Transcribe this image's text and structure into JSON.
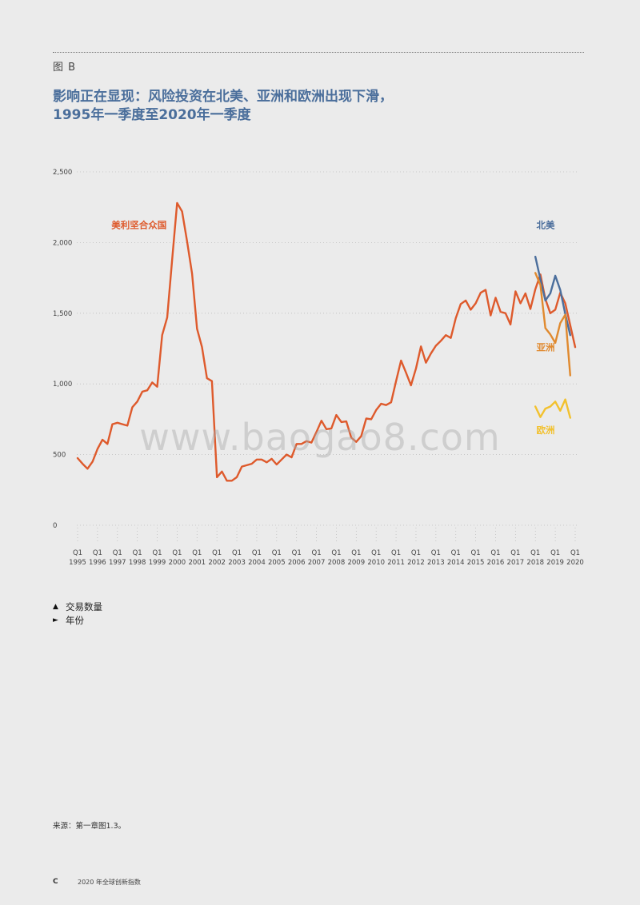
{
  "figure_label": "图 B",
  "title_lines": [
    "影响正在显现：风险投资在北美、亚洲和欧洲出现下滑，",
    "1995年一季度至2020年一季度"
  ],
  "legend": [
    {
      "symbol": "▲",
      "label": "交易数量"
    },
    {
      "symbol": "►",
      "label": "年份"
    }
  ],
  "source": "来源：第一章图1.3。",
  "footer": {
    "letter": "C",
    "text": "2020 年全球创新指数"
  },
  "watermark": "www.baogao8.com",
  "chart_data": {
    "type": "line",
    "title": "",
    "xlabel": "",
    "ylabel": "",
    "ylim": [
      0,
      2500
    ],
    "y_ticks": [
      0,
      500,
      1000,
      1500,
      2000,
      2500
    ],
    "y_tick_labels": [
      "0",
      "500",
      "1,000",
      "1,500",
      "2,000",
      "2,500"
    ],
    "x_tick_quarter_label": "Q1",
    "x_tick_years": [
      "1995",
      "1996",
      "1997",
      "1998",
      "1999",
      "2000",
      "2001",
      "2002",
      "2003",
      "2004",
      "2005",
      "2006",
      "2007",
      "2008",
      "2009",
      "2010",
      "2011",
      "2012",
      "2013",
      "2014",
      "2015",
      "2016",
      "2017",
      "2018",
      "2019",
      "2020"
    ],
    "grid": "horizontal dotted",
    "series": [
      {
        "name": "美利坚合众国",
        "color": "#de5a2c",
        "label_anchor": [
          1996.7,
          2100
        ],
        "x_start": 1995.0,
        "values": [
          475,
          435,
          400,
          450,
          540,
          605,
          575,
          715,
          725,
          715,
          705,
          835,
          875,
          945,
          955,
          1010,
          980,
          1345,
          1470,
          1880,
          2280,
          2220,
          2010,
          1780,
          1390,
          1260,
          1040,
          1020,
          340,
          380,
          315,
          315,
          340,
          415,
          425,
          435,
          465,
          465,
          445,
          470,
          430,
          465,
          500,
          480,
          575,
          575,
          595,
          585,
          660,
          740,
          680,
          685,
          780,
          730,
          735,
          620,
          590,
          630,
          755,
          750,
          815,
          860,
          850,
          870,
          1020,
          1165,
          1080,
          990,
          1110,
          1265,
          1150,
          1215,
          1270,
          1305,
          1345,
          1325,
          1465,
          1565,
          1590,
          1525,
          1570,
          1645,
          1665,
          1485,
          1610,
          1510,
          1500,
          1420,
          1655,
          1570,
          1640,
          1530,
          1670,
          1775,
          1600,
          1500,
          1525,
          1645,
          1570,
          1415,
          1260
        ]
      },
      {
        "name": "北美",
        "color": "#4b6e9c",
        "label_anchor": [
          2018.05,
          2100
        ],
        "x_start": 2018.0,
        "values": [
          1900,
          1740,
          1590,
          1640,
          1765,
          1665,
          1495,
          1345
        ]
      },
      {
        "name": "亚洲",
        "color": "#e0892e",
        "label_anchor": [
          2018.05,
          1235
        ],
        "x_start": 2018.0,
        "values": [
          1785,
          1700,
          1395,
          1350,
          1290,
          1430,
          1490,
          1060
        ]
      },
      {
        "name": "欧洲",
        "color": "#f2c12e",
        "label_anchor": [
          2018.05,
          650
        ],
        "x_start": 2018.0,
        "values": [
          840,
          765,
          825,
          840,
          875,
          810,
          890,
          760
        ]
      }
    ]
  }
}
